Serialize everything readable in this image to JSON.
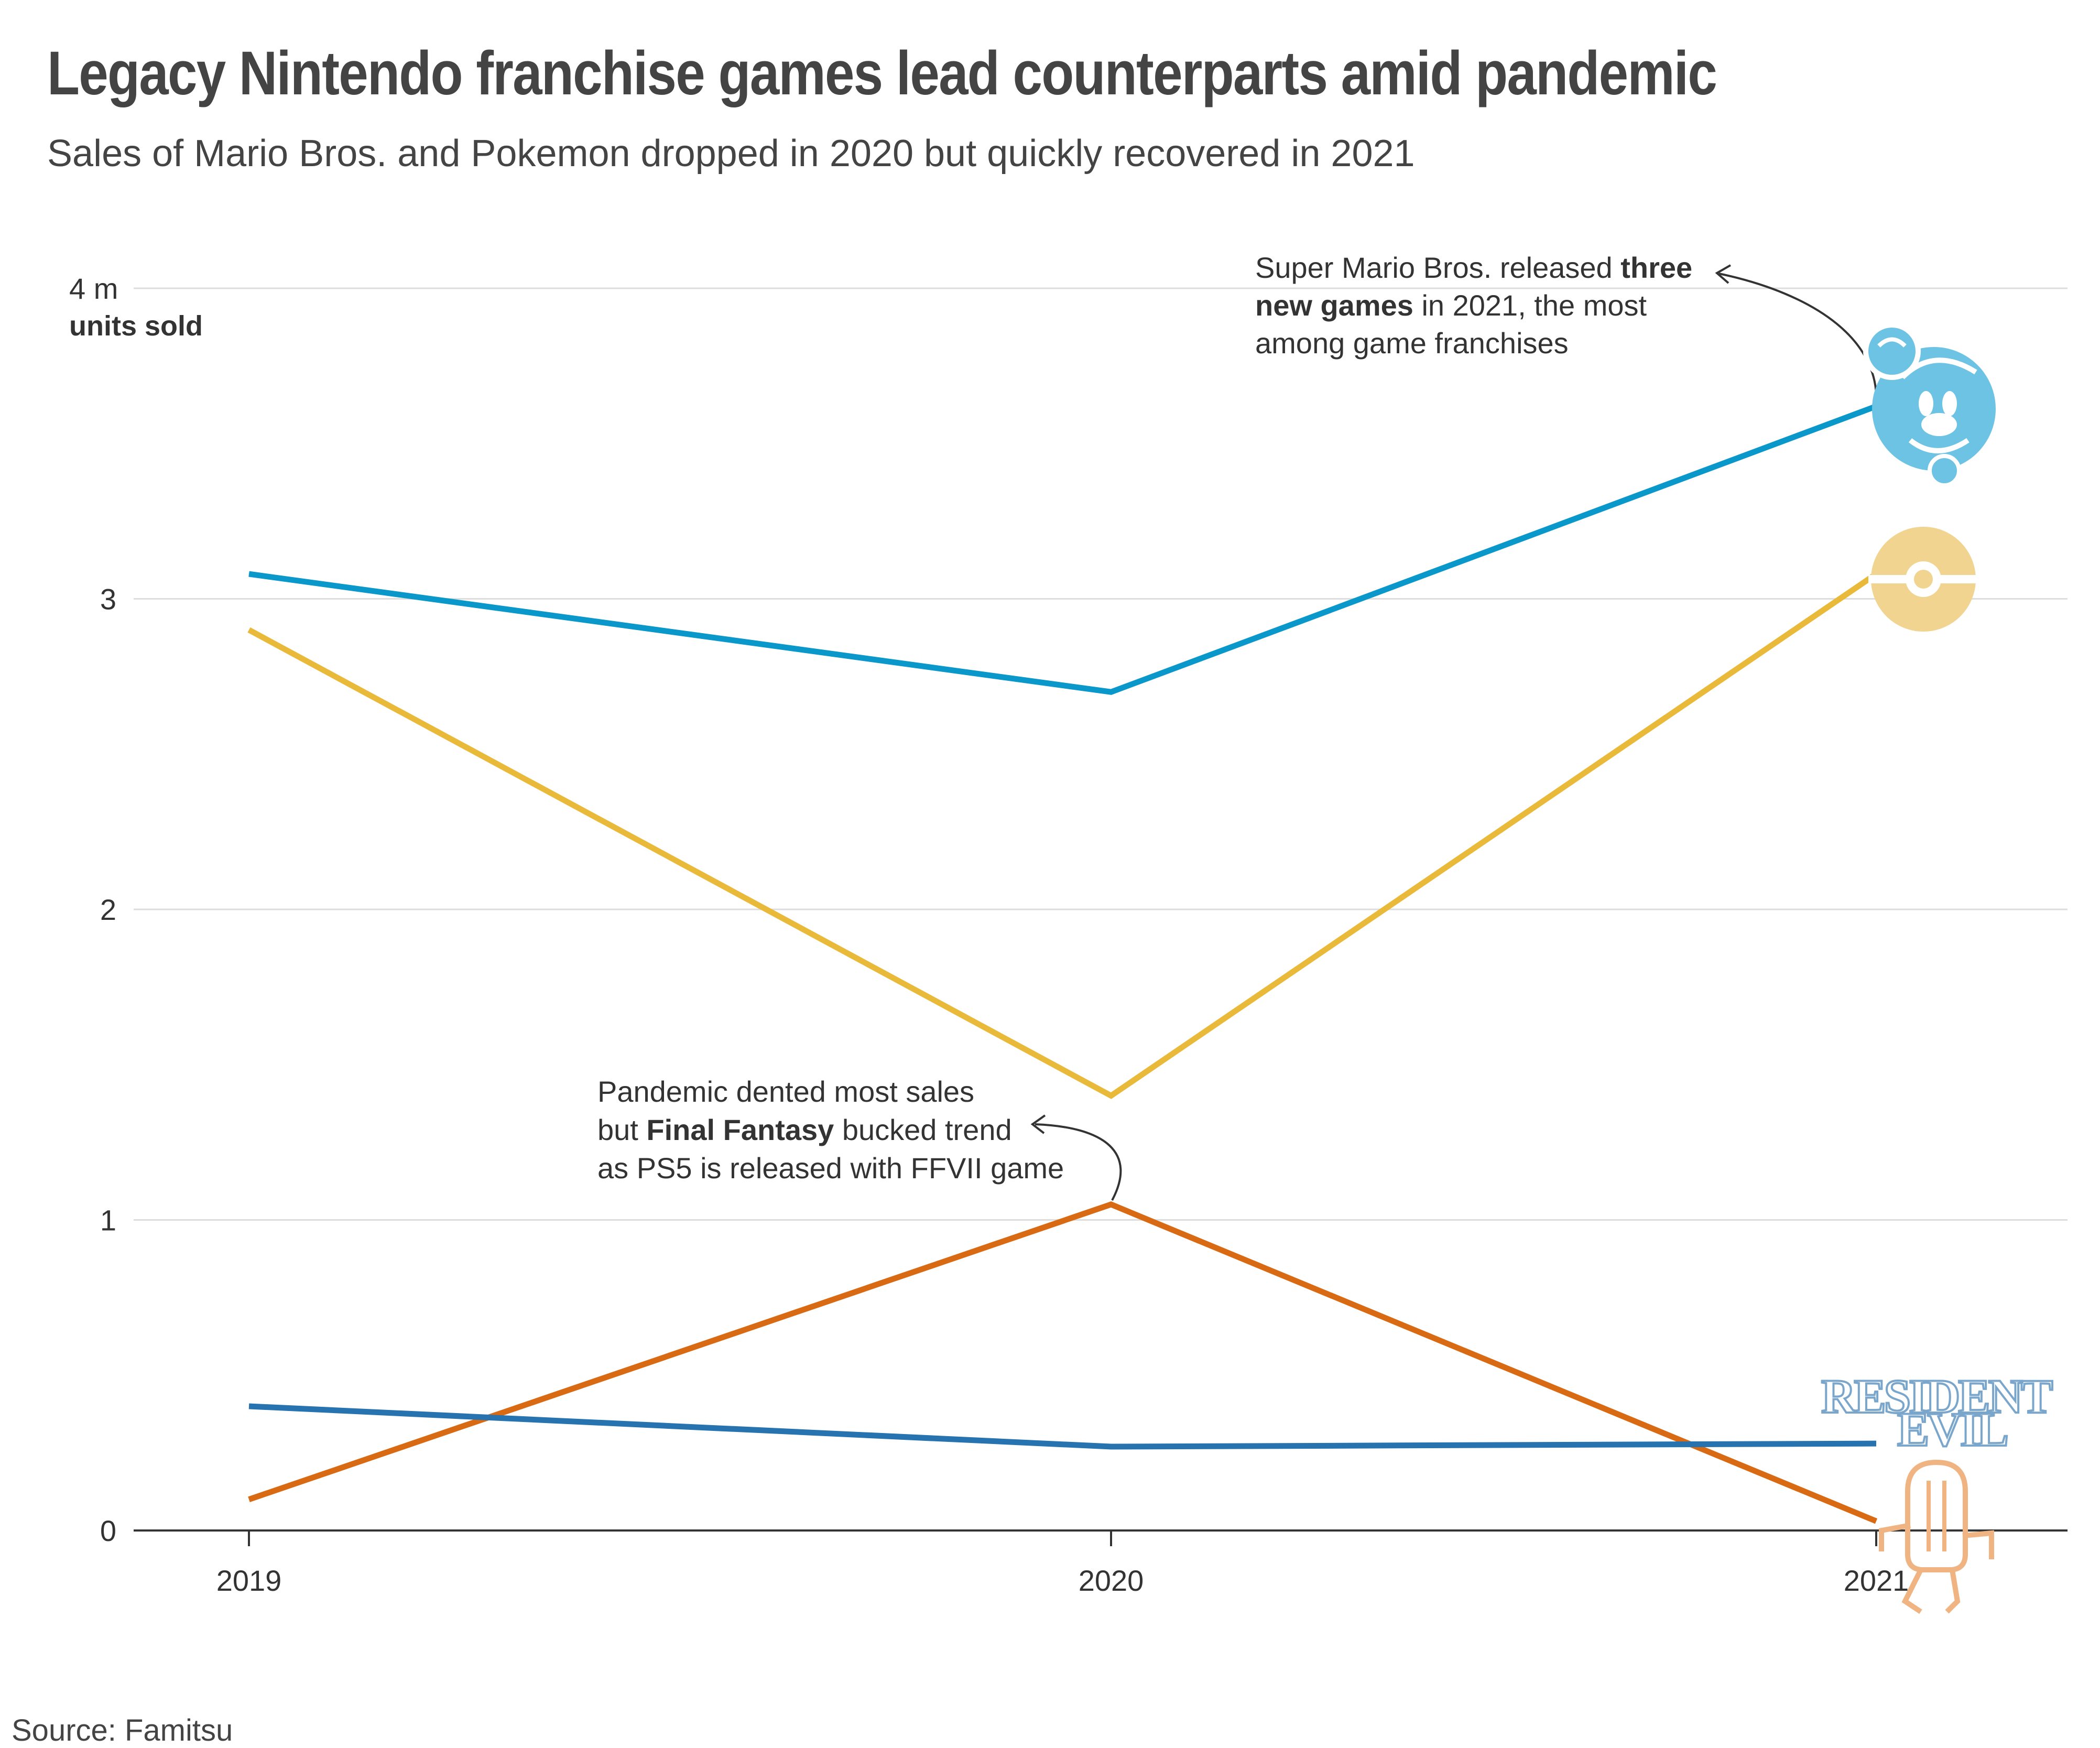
{
  "header": {
    "title": "Legacy Nintendo franchise games lead counterparts amid pandemic",
    "subtitle": "Sales of Mario Bros. and Pokemon dropped in 2020 but quickly recovered in 2021"
  },
  "footer": {
    "source": "Source: Famitsu"
  },
  "colors": {
    "mario": "#0a97c9",
    "pokemon": "#e9b93a",
    "final_fantasy": "#d96a14",
    "resident_evil": "#2773b0",
    "grid": "#dddddd",
    "axis": "#333333"
  },
  "chart_data": {
    "type": "line",
    "x": [
      "2019",
      "2020",
      "2021"
    ],
    "ylim": [
      0,
      4
    ],
    "y_ticks": [
      "0",
      "1",
      "2",
      "3",
      "4 m"
    ],
    "ylabel": "units sold",
    "grid": true,
    "series": [
      {
        "key": "mario",
        "values": [
          3.08,
          2.7,
          3.62
        ],
        "color": "#0a97c9",
        "icon": "mario-icon"
      },
      {
        "key": "pokemon",
        "values": [
          2.9,
          1.4,
          3.08
        ],
        "color": "#e9b93a",
        "icon": "pokeball-icon"
      },
      {
        "key": "final_fantasy",
        "values": [
          0.1,
          1.05,
          0.03
        ],
        "color": "#d96a14",
        "icon": "cactuar-icon"
      },
      {
        "key": "resident_evil",
        "values": [
          0.4,
          0.27,
          0.28
        ],
        "color": "#2773b0",
        "icon": "resident-evil-logo"
      }
    ],
    "annotations": {
      "mario": {
        "line1_pre": "Super Mario Bros. released ",
        "line1_bold": "three",
        "line2_bold": "new games",
        "line2_post": " in 2021, the most",
        "line3": "among game franchises"
      },
      "final_fantasy": {
        "line1": "Pandemic dented most sales",
        "line2_pre": "but ",
        "line2_bold": "Final Fantasy",
        "line2_post": " bucked trend",
        "line3": "as PS5 is released with FFVII game"
      }
    },
    "logo_text": {
      "resident_evil_line1": "RESIDENT",
      "resident_evil_line2": "EVIL"
    }
  }
}
